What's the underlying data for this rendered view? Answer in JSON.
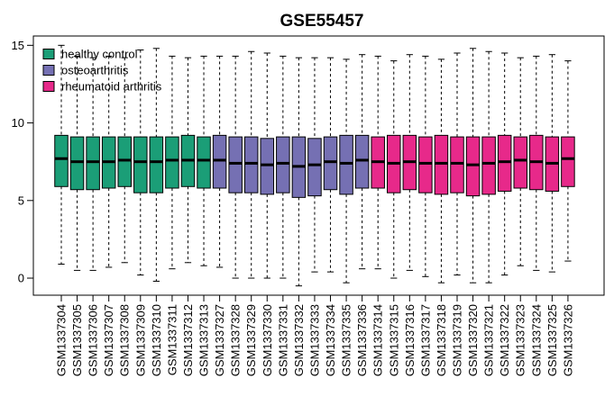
{
  "chart_data": {
    "type": "boxplot",
    "title": "GSE55457",
    "xlabel": "",
    "ylabel": "",
    "ylim": [
      -1.1,
      15.6
    ],
    "yticks": [
      0,
      5,
      10,
      15
    ],
    "grid": false,
    "legend": {
      "placement": "top-left",
      "entries": [
        {
          "label": "healthy control",
          "color": "#1b9e77"
        },
        {
          "label": "osteoarthritis",
          "color": "#7570b3"
        },
        {
          "label": "rheumatoid arthritis",
          "color": "#e7298a"
        }
      ]
    },
    "groups": [
      {
        "name": "healthy control",
        "color": "#1b9e77"
      },
      {
        "name": "osteoarthritis",
        "color": "#7570b3"
      },
      {
        "name": "rheumatoid arthritis",
        "color": "#e7298a"
      }
    ],
    "samples": [
      {
        "name": "GSM1337304",
        "group": 0,
        "min": 0.9,
        "q1": 5.9,
        "median": 7.7,
        "q3": 9.2,
        "max": 15.0
      },
      {
        "name": "GSM1337305",
        "group": 0,
        "min": 0.5,
        "q1": 5.7,
        "median": 7.5,
        "q3": 9.1,
        "max": 14.3
      },
      {
        "name": "GSM1337306",
        "group": 0,
        "min": 0.5,
        "q1": 5.7,
        "median": 7.5,
        "q3": 9.1,
        "max": 14.2
      },
      {
        "name": "GSM1337307",
        "group": 0,
        "min": 0.7,
        "q1": 5.8,
        "median": 7.5,
        "q3": 9.1,
        "max": 14.3
      },
      {
        "name": "GSM1337308",
        "group": 0,
        "min": 1.0,
        "q1": 5.9,
        "median": 7.6,
        "q3": 9.1,
        "max": 14.2
      },
      {
        "name": "GSM1337309",
        "group": 0,
        "min": 0.2,
        "q1": 5.5,
        "median": 7.5,
        "q3": 9.1,
        "max": 14.7
      },
      {
        "name": "GSM1337310",
        "group": 0,
        "min": -0.2,
        "q1": 5.5,
        "median": 7.5,
        "q3": 9.1,
        "max": 14.8
      },
      {
        "name": "GSM1337311",
        "group": 0,
        "min": 0.6,
        "q1": 5.8,
        "median": 7.6,
        "q3": 9.1,
        "max": 14.3
      },
      {
        "name": "GSM1337312",
        "group": 0,
        "min": 1.0,
        "q1": 5.9,
        "median": 7.6,
        "q3": 9.2,
        "max": 14.2
      },
      {
        "name": "GSM1337313",
        "group": 0,
        "min": 0.8,
        "q1": 5.8,
        "median": 7.6,
        "q3": 9.1,
        "max": 14.3
      },
      {
        "name": "GSM1337327",
        "group": 1,
        "min": 0.7,
        "q1": 5.8,
        "median": 7.6,
        "q3": 9.2,
        "max": 14.3
      },
      {
        "name": "GSM1337328",
        "group": 1,
        "min": 0.0,
        "q1": 5.5,
        "median": 7.4,
        "q3": 9.1,
        "max": 14.3
      },
      {
        "name": "GSM1337329",
        "group": 1,
        "min": 0.0,
        "q1": 5.5,
        "median": 7.4,
        "q3": 9.1,
        "max": 14.6
      },
      {
        "name": "GSM1337330",
        "group": 1,
        "min": 0.0,
        "q1": 5.4,
        "median": 7.3,
        "q3": 9.0,
        "max": 14.5
      },
      {
        "name": "GSM1337331",
        "group": 1,
        "min": 0.0,
        "q1": 5.5,
        "median": 7.4,
        "q3": 9.1,
        "max": 14.3
      },
      {
        "name": "GSM1337332",
        "group": 1,
        "min": -0.5,
        "q1": 5.2,
        "median": 7.2,
        "q3": 9.1,
        "max": 14.2
      },
      {
        "name": "GSM1337333",
        "group": 1,
        "min": 0.4,
        "q1": 5.3,
        "median": 7.3,
        "q3": 9.0,
        "max": 14.2
      },
      {
        "name": "GSM1337334",
        "group": 1,
        "min": 0.4,
        "q1": 5.7,
        "median": 7.5,
        "q3": 9.1,
        "max": 14.2
      },
      {
        "name": "GSM1337335",
        "group": 1,
        "min": -0.3,
        "q1": 5.4,
        "median": 7.4,
        "q3": 9.2,
        "max": 14.1
      },
      {
        "name": "GSM1337336",
        "group": 1,
        "min": 0.6,
        "q1": 5.8,
        "median": 7.6,
        "q3": 9.2,
        "max": 14.4
      },
      {
        "name": "GSM1337314",
        "group": 2,
        "min": 0.6,
        "q1": 5.8,
        "median": 7.5,
        "q3": 9.1,
        "max": 14.3
      },
      {
        "name": "GSM1337315",
        "group": 2,
        "min": 0.0,
        "q1": 5.5,
        "median": 7.4,
        "q3": 9.2,
        "max": 14.0
      },
      {
        "name": "GSM1337316",
        "group": 2,
        "min": 0.5,
        "q1": 5.7,
        "median": 7.5,
        "q3": 9.2,
        "max": 14.4
      },
      {
        "name": "GSM1337317",
        "group": 2,
        "min": 0.1,
        "q1": 5.5,
        "median": 7.4,
        "q3": 9.1,
        "max": 14.3
      },
      {
        "name": "GSM1337318",
        "group": 2,
        "min": -0.3,
        "q1": 5.4,
        "median": 7.4,
        "q3": 9.2,
        "max": 14.1
      },
      {
        "name": "GSM1337319",
        "group": 2,
        "min": 0.2,
        "q1": 5.5,
        "median": 7.4,
        "q3": 9.1,
        "max": 14.5
      },
      {
        "name": "GSM1337320",
        "group": 2,
        "min": -0.3,
        "q1": 5.3,
        "median": 7.3,
        "q3": 9.1,
        "max": 14.8
      },
      {
        "name": "GSM1337321",
        "group": 2,
        "min": -0.3,
        "q1": 5.4,
        "median": 7.4,
        "q3": 9.1,
        "max": 14.6
      },
      {
        "name": "GSM1337322",
        "group": 2,
        "min": 0.2,
        "q1": 5.6,
        "median": 7.5,
        "q3": 9.2,
        "max": 14.5
      },
      {
        "name": "GSM1337323",
        "group": 2,
        "min": 0.8,
        "q1": 5.8,
        "median": 7.6,
        "q3": 9.1,
        "max": 14.2
      },
      {
        "name": "GSM1337324",
        "group": 2,
        "min": 0.5,
        "q1": 5.7,
        "median": 7.5,
        "q3": 9.2,
        "max": 14.3
      },
      {
        "name": "GSM1337325",
        "group": 2,
        "min": 0.4,
        "q1": 5.6,
        "median": 7.4,
        "q3": 9.1,
        "max": 14.4
      },
      {
        "name": "GSM1337326",
        "group": 2,
        "min": 1.1,
        "q1": 5.9,
        "median": 7.7,
        "q3": 9.1,
        "max": 14.0
      }
    ]
  }
}
